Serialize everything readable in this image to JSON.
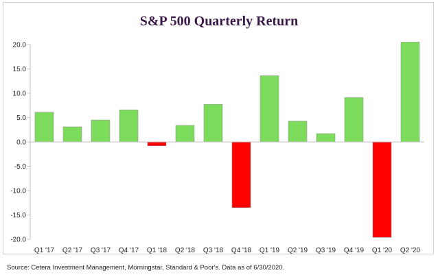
{
  "chart_data": {
    "type": "bar",
    "title": "S&P 500 Quarterly Return",
    "xlabel": "",
    "ylabel": "",
    "categories": [
      "Q1 '17",
      "Q2 '17",
      "Q3 '17",
      "Q4 '17",
      "Q1 '18",
      "Q2 '18",
      "Q3 '18",
      "Q4 '18",
      "Q1 '19",
      "Q2 '19",
      "Q3 '19",
      "Q4 '19",
      "Q1 '20",
      "Q2 '20"
    ],
    "values": [
      6.1,
      3.1,
      4.5,
      6.6,
      -0.8,
      3.4,
      7.7,
      -13.5,
      13.6,
      4.3,
      1.7,
      9.1,
      -19.6,
      20.5
    ],
    "ylim": [
      -20,
      20
    ],
    "yticks": [
      20,
      15,
      10,
      5,
      0,
      -5,
      -10,
      -15,
      -20
    ],
    "ytick_labels": [
      "20.0",
      "15.0",
      "10.0",
      "5.0",
      "0.0",
      "-5.0",
      "-10.0",
      "-15.0",
      "-20.0"
    ],
    "grid": false,
    "colors": {
      "positive": "#7ddc5b",
      "negative": "#ff0000",
      "axis": "#bfbfbf"
    }
  },
  "source_note": "Source: Cetera Investment Management, Morningstar, Standard & Poor's. Data as of 6/30/2020."
}
